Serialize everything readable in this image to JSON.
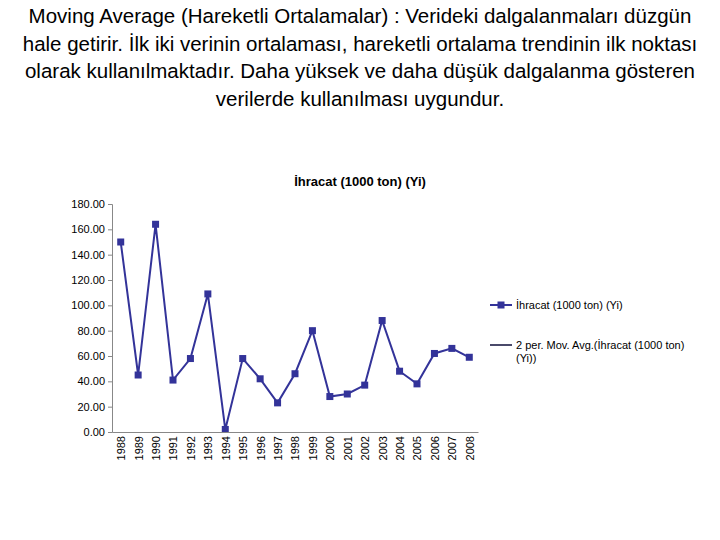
{
  "chart_data": {
    "type": "line",
    "annotations": [
      "Moving Average (Hareketli Ortalamalar) : Verideki dalgalanmaları düzgün hale getirir. İlk iki verinin ortalaması, hareketli ortalama trendinin ilk noktası olarak kullanılmaktadır. Daha yüksek ve daha düşük dalgalanma gösteren verilerde kullanılması uygundur."
    ],
    "title": "İhracat (1000 ton) (Yi)",
    "categories": [
      "1988",
      "1989",
      "1990",
      "1991",
      "1992",
      "1993",
      "1994",
      "1995",
      "1996",
      "1997",
      "1998",
      "1999",
      "2000",
      "2001",
      "2002",
      "2003",
      "2004",
      "2005",
      "2006",
      "2007",
      "2008"
    ],
    "series": [
      {
        "name": "İhracat (1000 ton) (Yi)",
        "color": "#333399",
        "marker": "square",
        "line_style": "solid",
        "values": [
          150,
          45,
          164,
          41,
          58,
          109,
          2,
          58,
          42,
          23,
          46,
          80,
          28,
          30,
          37,
          88,
          48,
          38,
          62,
          66,
          59
        ]
      },
      {
        "name": "2 per. Mov. Avg.(İhracat (1000 ton) (Yi))",
        "color": "#4a4a6a",
        "marker": "none",
        "line_style": "solid",
        "values": [
          null,
          null,
          null,
          null,
          null,
          null,
          null,
          null,
          null,
          null,
          null,
          null,
          null,
          null,
          null,
          null,
          null,
          null,
          null,
          null,
          null
        ]
      }
    ],
    "ylim": [
      0,
      180
    ],
    "yticks": [
      {
        "value": 0,
        "label": "0.00"
      },
      {
        "value": 20,
        "label": "20.00"
      },
      {
        "value": 40,
        "label": "40.00"
      },
      {
        "value": 60,
        "label": "60.00"
      },
      {
        "value": 80,
        "label": "80.00"
      },
      {
        "value": 100,
        "label": "100.00"
      },
      {
        "value": 120,
        "label": "120.00"
      },
      {
        "value": 140,
        "label": "140.00"
      },
      {
        "value": 160,
        "label": "160.00"
      },
      {
        "value": 180,
        "label": "180.00"
      }
    ],
    "grid": false,
    "legend": "right"
  }
}
